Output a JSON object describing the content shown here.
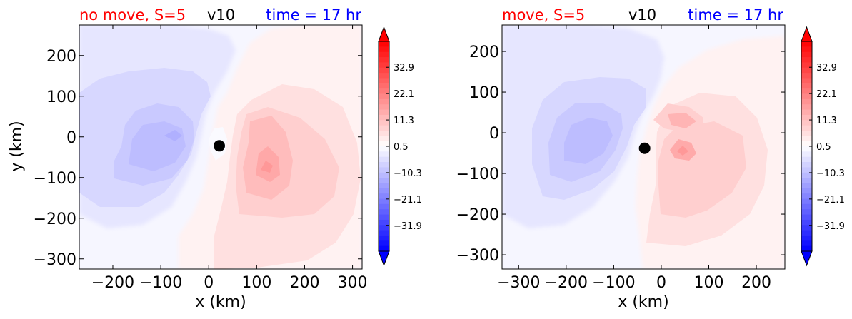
{
  "chart_data": [
    {
      "type": "heatmap",
      "title_left": "no move, S=5",
      "title_center": "v10",
      "title_right": "time = 17 hr",
      "xlabel": "x (km)",
      "ylabel": "y (km)",
      "xlim": [
        -270,
        320
      ],
      "ylim": [
        -325,
        275
      ],
      "xticks": [
        -200,
        -100,
        0,
        100,
        200,
        300
      ],
      "xtick_labels": [
        "−200",
        "−100",
        "0",
        "100",
        "200",
        "300"
      ],
      "yticks": [
        200,
        100,
        0,
        -100,
        -200,
        -300
      ],
      "ytick_labels": [
        "200",
        "100",
        "0",
        "−100",
        "−200",
        "−300"
      ],
      "center_marker": {
        "x": 22,
        "y": -22
      },
      "colorbar": {
        "vmin": -42.5,
        "vmax": 43.5,
        "ticks": [
          32.9,
          22.1,
          11.3,
          0.5,
          -10.3,
          -21.1,
          -31.9
        ],
        "tick_labels": [
          "32.9",
          "22.1",
          "11.3",
          "0.5",
          "−10.3",
          "−21.1",
          "−31.9"
        ],
        "extend": "both",
        "colormap": "bwr"
      }
    },
    {
      "type": "heatmap",
      "title_left": "move, S=5",
      "title_center": "v10",
      "title_right": "time = 17 hr",
      "xlabel": "x (km)",
      "ylabel": "",
      "xlim": [
        -335,
        260
      ],
      "ylim": [
        -335,
        265
      ],
      "xticks": [
        -300,
        -200,
        -100,
        0,
        100,
        200
      ],
      "xtick_labels": [
        "−300",
        "−200",
        "−100",
        "0",
        "100",
        "200"
      ],
      "yticks": [
        200,
        100,
        0,
        -100,
        -200,
        -300
      ],
      "ytick_labels": [
        "200",
        "100",
        "0",
        "−100",
        "−200",
        "−300"
      ],
      "center_marker": {
        "x": -35,
        "y": -38
      },
      "colorbar": {
        "vmin": -42.5,
        "vmax": 43.5,
        "ticks": [
          32.9,
          22.1,
          11.3,
          0.5,
          -10.3,
          -21.1,
          -31.9
        ],
        "tick_labels": [
          "32.9",
          "22.1",
          "11.3",
          "0.5",
          "−10.3",
          "−21.1",
          "−31.9"
        ],
        "extend": "both",
        "colormap": "bwr"
      }
    }
  ]
}
